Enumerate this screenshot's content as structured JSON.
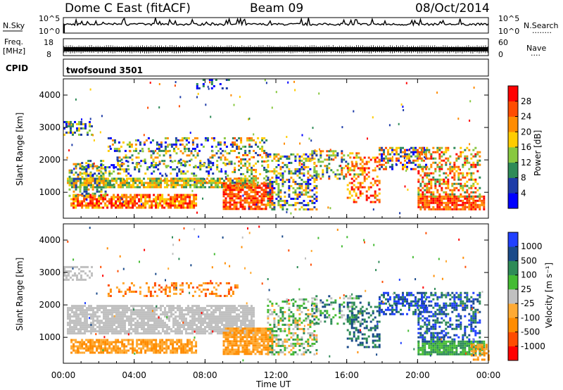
{
  "header": {
    "station": "Dome C East (fitACF)",
    "beam": "Beam 09",
    "date": "08/Oct/2014"
  },
  "strip_panels": {
    "nsky_label": "N.Sky",
    "nsearch_label": "N.Search",
    "nsearch_dots": "········",
    "log_ticks": [
      "10^5",
      "10^0"
    ],
    "freq_label": "Freq.",
    "freq_unit": "[MHz]",
    "freq_ticks": [
      "18",
      "8"
    ],
    "nave_label": "Nave",
    "nave_dots": "····",
    "nave_ticks": [
      "60",
      "0"
    ],
    "cpid_label": "CPID",
    "cpid_value": "twofsound 3501"
  },
  "power_colorbar": {
    "label": "Power [dB]",
    "ticks": [
      "28",
      "24",
      "20",
      "16",
      "12",
      "8",
      "4"
    ],
    "colors": [
      "#ff0000",
      "#ff4c00",
      "#ff8c00",
      "#ffcc00",
      "#88c840",
      "#2e8b57",
      "#1e3ca8",
      "#0000ff"
    ]
  },
  "velocity_colorbar": {
    "label": "Velocity [m s⁻¹]",
    "ticks": [
      "1000",
      "500",
      "100",
      "25",
      "-25",
      "-100",
      "-500",
      "-1000"
    ],
    "colors": [
      "#2040ff",
      "#1a4a8a",
      "#2e8b57",
      "#44bb33",
      "#c0c0c0",
      "#ffaa33",
      "#ff8c00",
      "#ff4c00",
      "#ff0000"
    ]
  },
  "chart_data": [
    {
      "type": "heatmap",
      "name": "power",
      "ylabel": "Slant Range [km]",
      "ylim": [
        200,
        4500
      ],
      "yticks": [
        1000,
        2000,
        3000,
        4000
      ],
      "xlim": [
        0,
        24
      ],
      "xticks": [
        "00:00",
        "04:00",
        "08:00",
        "12:00",
        "16:00",
        "20:00",
        "00:00"
      ],
      "blobs": [
        {
          "t0": 0.2,
          "t1": 10.8,
          "r0": 1150,
          "r1": 1450,
          "dens": 0.85,
          "lvl": [
            2,
            5
          ]
        },
        {
          "t0": 0.4,
          "t1": 7.5,
          "r0": 500,
          "r1": 950,
          "dens": 0.75,
          "lvl": [
            0,
            3
          ]
        },
        {
          "t0": 0.3,
          "t1": 2.4,
          "r0": 900,
          "r1": 1900,
          "dens": 0.45,
          "lvl": [
            2,
            6
          ]
        },
        {
          "t0": 1.0,
          "t1": 9.3,
          "r0": 1500,
          "r1": 2000,
          "dens": 0.3,
          "lvl": [
            3,
            7
          ]
        },
        {
          "t0": 2.5,
          "t1": 9.8,
          "r0": 2300,
          "r1": 2700,
          "dens": 0.3,
          "lvl": [
            2,
            7
          ]
        },
        {
          "t0": 0.0,
          "t1": 1.6,
          "r0": 2800,
          "r1": 3200,
          "dens": 0.5,
          "lvl": [
            3,
            7
          ]
        },
        {
          "t0": 3.0,
          "t1": 9.5,
          "r0": 1800,
          "r1": 2300,
          "dens": 0.25,
          "lvl": [
            2,
            6
          ]
        },
        {
          "t0": 9.0,
          "t1": 11.8,
          "r0": 500,
          "r1": 1300,
          "dens": 0.8,
          "lvl": [
            0,
            2
          ]
        },
        {
          "t0": 9.5,
          "t1": 11.5,
          "r0": 1300,
          "r1": 2700,
          "dens": 0.35,
          "lvl": [
            1,
            6
          ]
        },
        {
          "t0": 11.5,
          "t1": 14.3,
          "r0": 500,
          "r1": 2200,
          "dens": 0.45,
          "lvl": [
            2,
            7
          ]
        },
        {
          "t0": 14.0,
          "t1": 16.8,
          "r0": 1400,
          "r1": 2300,
          "dens": 0.35,
          "lvl": [
            1,
            6
          ]
        },
        {
          "t0": 16.0,
          "t1": 17.8,
          "r0": 700,
          "r1": 2100,
          "dens": 0.4,
          "lvl": [
            0,
            3
          ]
        },
        {
          "t0": 17.8,
          "t1": 20.5,
          "r0": 1700,
          "r1": 2400,
          "dens": 0.5,
          "lvl": [
            1,
            7
          ]
        },
        {
          "t0": 20.0,
          "t1": 23.8,
          "r0": 500,
          "r1": 900,
          "dens": 0.85,
          "lvl": [
            0,
            2
          ]
        },
        {
          "t0": 20.0,
          "t1": 23.5,
          "r0": 900,
          "r1": 2400,
          "dens": 0.45,
          "lvl": [
            0,
            5
          ]
        },
        {
          "t0": 7.5,
          "t1": 9.5,
          "r0": 4200,
          "r1": 4500,
          "dens": 0.2,
          "lvl": [
            5,
            7
          ]
        }
      ]
    },
    {
      "type": "heatmap",
      "name": "velocity",
      "ylabel": "Slant Range [km]",
      "ylim": [
        200,
        4500
      ],
      "yticks": [
        1000,
        2000,
        3000,
        4000
      ],
      "xlim": [
        0,
        24
      ],
      "xticks": [
        "00:00",
        "04:00",
        "08:00",
        "12:00",
        "16:00",
        "20:00",
        "00:00"
      ],
      "xlabel": "Time UT",
      "blobs": [
        {
          "t0": 0.2,
          "t1": 10.8,
          "r0": 1100,
          "r1": 2000,
          "dens": 0.8,
          "lvl": [
            4,
            4
          ]
        },
        {
          "t0": 0.4,
          "t1": 7.5,
          "r0": 500,
          "r1": 950,
          "dens": 0.75,
          "lvl": [
            5,
            6
          ]
        },
        {
          "t0": 0.0,
          "t1": 1.6,
          "r0": 2800,
          "r1": 3200,
          "dens": 0.5,
          "lvl": [
            4,
            4
          ]
        },
        {
          "t0": 2.5,
          "t1": 9.8,
          "r0": 2300,
          "r1": 2700,
          "dens": 0.3,
          "lvl": [
            5,
            7
          ]
        },
        {
          "t0": 9.0,
          "t1": 11.8,
          "r0": 500,
          "r1": 1300,
          "dens": 0.85,
          "lvl": [
            5,
            6
          ]
        },
        {
          "t0": 11.5,
          "t1": 14.3,
          "r0": 500,
          "r1": 2200,
          "dens": 0.45,
          "lvl": [
            2,
            5
          ]
        },
        {
          "t0": 14.0,
          "t1": 16.8,
          "r0": 1400,
          "r1": 2300,
          "dens": 0.35,
          "lvl": [
            1,
            4
          ]
        },
        {
          "t0": 16.0,
          "t1": 17.8,
          "r0": 700,
          "r1": 2100,
          "dens": 0.4,
          "lvl": [
            1,
            2
          ]
        },
        {
          "t0": 17.8,
          "t1": 20.5,
          "r0": 1700,
          "r1": 2400,
          "dens": 0.5,
          "lvl": [
            0,
            2
          ]
        },
        {
          "t0": 20.0,
          "t1": 23.8,
          "r0": 500,
          "r1": 900,
          "dens": 0.85,
          "lvl": [
            2,
            3
          ]
        },
        {
          "t0": 20.0,
          "t1": 23.5,
          "r0": 900,
          "r1": 2400,
          "dens": 0.45,
          "lvl": [
            0,
            2
          ]
        },
        {
          "t0": 23.0,
          "t1": 24.0,
          "r0": 300,
          "r1": 800,
          "dens": 0.6,
          "lvl": [
            5,
            6
          ]
        }
      ]
    }
  ]
}
